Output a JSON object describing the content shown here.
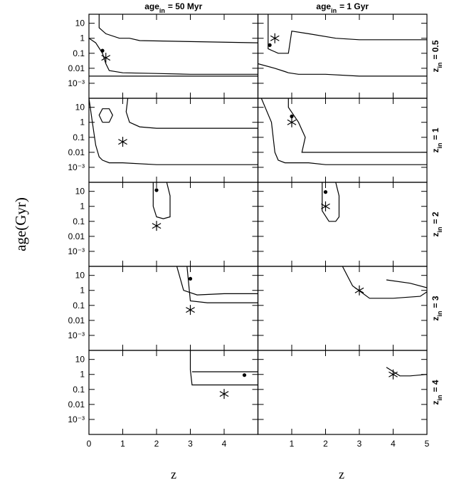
{
  "chart_data": {
    "type": "contour-grid",
    "ylabel": "age(Gyr)",
    "xlabel": "z",
    "xlim": [
      0,
      5
    ],
    "xticks": [
      0,
      1,
      2,
      3,
      4,
      5
    ],
    "ylim": [
      0.0001,
      40
    ],
    "log_y": true,
    "yticks": [
      10,
      1,
      0.1,
      0.01,
      {
        "value": 0.001,
        "label": "10⁻³"
      }
    ],
    "color": "#000000",
    "column_titles": [
      {
        "main": "age",
        "sub": "in",
        "rest": "= 50 Myr"
      },
      {
        "main": "age",
        "sub": "in",
        "rest": "= 1 Gyr"
      }
    ],
    "rows": [
      {
        "label": {
          "main": "z",
          "sub": "in",
          "rest": "= 0.5"
        },
        "panels": [
          {
            "star": {
              "x": 0.5,
              "y": 0.05
            },
            "dot": {
              "x": 0.4,
              "y": 0.15
            },
            "contours": [
              {
                "x": [
                  0,
                  0.2,
                  0.4,
                  0.5,
                  0.6,
                  1,
                  2,
                  3,
                  4,
                  5
                ],
                "y": [
                  1,
                  0.5,
                  0.1,
                  0.02,
                  0.007,
                  0.005,
                  0.0045,
                  0.004,
                  0.004,
                  0.004
                ]
              },
              {
                "x": [
                  0.3,
                  0.3,
                  0.5,
                  0.9,
                  1.2,
                  1.5,
                  3,
                  5
                ],
                "y": [
                  40,
                  5,
                  2,
                  1,
                  1,
                  0.7,
                  0.6,
                  0.5
                ]
              },
              {
                "x": [
                  0,
                  0.6,
                  1.5,
                  2.5,
                  5
                ],
                "y": [
                  0.003,
                  0.003,
                  0.003,
                  0.003,
                  0.003
                ]
              }
            ]
          },
          {
            "star": {
              "x": 0.5,
              "y": 1
            },
            "dot": {
              "x": 0.35,
              "y": 0.35
            },
            "contours": [
              {
                "x": [
                  0,
                  0.5,
                  0.8,
                  0.9,
                  1.2,
                  2,
                  3,
                  5
                ],
                "y": [
                  0.02,
                  0.01,
                  0.006,
                  0.005,
                  0.004,
                  0.004,
                  0.003,
                  0.003
                ]
              },
              {
                "x": [
                  0.3,
                  0.3,
                  0.6,
                  0.9,
                  1.0,
                  1.5,
                  2.3,
                  3,
                  5
                ],
                "y": [
                  40,
                  0.2,
                  0.1,
                  0.1,
                  3,
                  2,
                  1,
                  0.8,
                  0.8
                ]
              }
            ]
          }
        ]
      },
      {
        "label": {
          "main": "z",
          "sub": "in",
          "rest": "= 1"
        },
        "panels": [
          {
            "star": {
              "x": 1,
              "y": 0.05
            },
            "contours": [
              {
                "x": [
                  0,
                  0.1,
                  0.2,
                  0.3,
                  0.4,
                  0.6,
                  1,
                  2,
                  3,
                  5
                ],
                "y": [
                  40,
                  1,
                  0.03,
                  0.005,
                  0.003,
                  0.002,
                  0.002,
                  0.0015,
                  0.0015,
                  0.0015
                ]
              },
              {
                "x": [
                  1.15,
                  1.1,
                  1.2,
                  1.5,
                  2,
                  3,
                  5
                ],
                "y": [
                  40,
                  5,
                  1,
                  0.5,
                  0.4,
                  0.4,
                  0.4
                ]
              },
              {
                "x": [
                  0.4,
                  0.6,
                  0.7,
                  0.6,
                  0.4,
                  0.3,
                  0.4
                ],
                "y": [
                  1,
                  1,
                  3,
                  8,
                  8,
                  3,
                  1
                ]
              }
            ]
          },
          {
            "star": {
              "x": 1,
              "y": 1
            },
            "dot": {
              "x": 1,
              "y": 2.5
            },
            "contours": [
              {
                "x": [
                  0.1,
                  0.4,
                  0.5,
                  0.6,
                  0.8,
                  1.5,
                  2,
                  3,
                  5
                ],
                "y": [
                  40,
                  1,
                  0.01,
                  0.003,
                  0.002,
                  0.002,
                  0.0015,
                  0.0015,
                  0.0015
                ]
              },
              {
                "x": [
                  0.9,
                  0.9,
                  1.2,
                  1.4,
                  1.3,
                  1.5,
                  3,
                  5
                ],
                "y": [
                  40,
                  10,
                  1,
                  0.1,
                  0.01,
                  0.01,
                  0.01,
                  0.01
                ]
              }
            ]
          }
        ]
      },
      {
        "label": {
          "main": "z",
          "sub": "in",
          "rest": "= 2"
        },
        "panels": [
          {
            "star": {
              "x": 2,
              "y": 0.05
            },
            "dot": {
              "x": 2,
              "y": 12
            },
            "contours": [
              {
                "x": [
                  1.9,
                  1.9,
                  2.0,
                  2.2,
                  2.4,
                  2.4,
                  2.3
                ],
                "y": [
                  40,
                  1,
                  0.2,
                  0.15,
                  0.2,
                  5,
                  40
                ]
              }
            ]
          },
          {
            "star": {
              "x": 2,
              "y": 1
            },
            "dot": {
              "x": 2,
              "y": 9
            },
            "contours": [
              {
                "x": [
                  1.9,
                  1.9,
                  2.1,
                  2.3,
                  2.4,
                  2.4,
                  2.3
                ],
                "y": [
                  40,
                  0.5,
                  0.1,
                  0.1,
                  0.2,
                  5,
                  40
                ]
              }
            ]
          }
        ]
      },
      {
        "label": {
          "main": "z",
          "sub": "in",
          "rest": "= 3"
        },
        "panels": [
          {
            "star": {
              "x": 3,
              "y": 0.05
            },
            "dot": {
              "x": 3,
              "y": 6
            },
            "contours": [
              {
                "x": [
                  2.6,
                  2.8,
                  3.2,
                  4,
                  5
                ],
                "y": [
                  40,
                  1,
                  0.5,
                  0.6,
                  0.6
                ]
              },
              {
                "x": [
                  2.9,
                  3.0,
                  3.5,
                  4,
                  5
                ],
                "y": [
                  40,
                  0.2,
                  0.15,
                  0.15,
                  0.15
                ]
              }
            ]
          },
          {
            "star": {
              "x": 3,
              "y": 1
            },
            "contours": [
              {
                "x": [
                  2.5,
                  2.8,
                  3.3,
                  4,
                  4.8,
                  5
                ],
                "y": [
                  40,
                  2,
                  0.3,
                  0.3,
                  0.4,
                  0.8
                ]
              },
              {
                "x": [
                  3.8,
                  4.5,
                  5
                ],
                "y": [
                  5,
                  3,
                  1.5
                ]
              }
            ]
          }
        ]
      },
      {
        "label": {
          "main": "z",
          "sub": "in",
          "rest": "= 4"
        },
        "panels": [
          {
            "star": {
              "x": 4,
              "y": 0.05
            },
            "dot": {
              "x": 4.6,
              "y": 0.9
            },
            "contours": [
              {
                "x": [
                  3,
                  3,
                  3.05,
                  3.5,
                  4,
                  5
                ],
                "y": [
                  40,
                  2,
                  0.2,
                  0.2,
                  0.2,
                  0.2
                ]
              },
              {
                "x": [
                  3.05,
                  3.5,
                  4.5,
                  5
                ],
                "y": [
                  1.5,
                  1.5,
                  1.5,
                  1.5
                ]
              }
            ]
          },
          {
            "star": {
              "x": 4,
              "y": 1
            },
            "contours": [
              {
                "x": [
                  3.8,
                  4.2,
                  4.5,
                  5
                ],
                "y": [
                  3,
                  0.8,
                  0.8,
                  1
                ]
              }
            ]
          }
        ]
      }
    ]
  }
}
